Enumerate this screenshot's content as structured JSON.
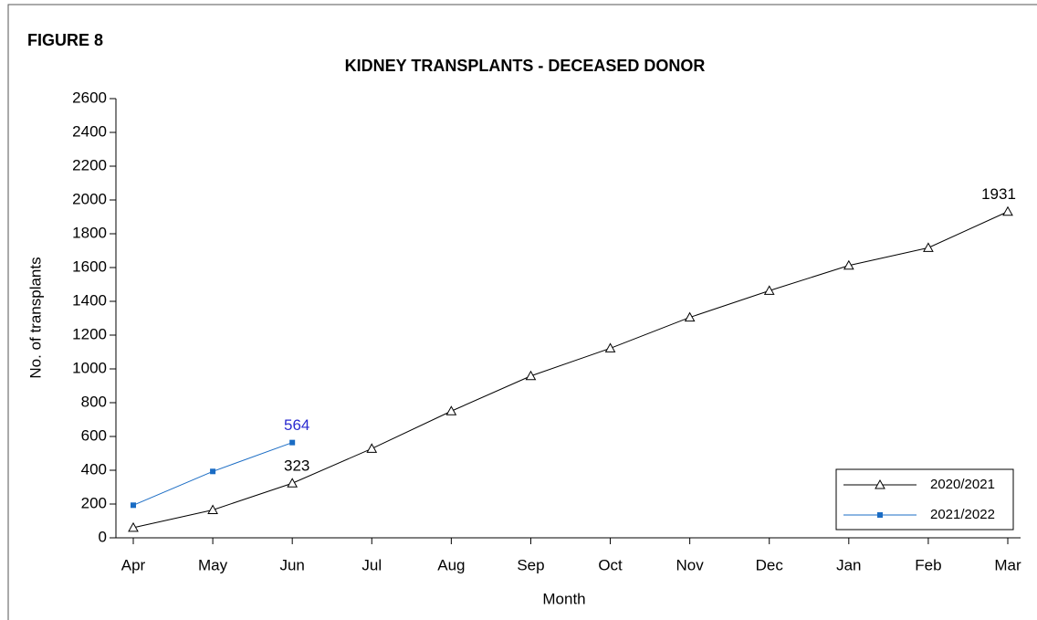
{
  "page_label": "FIGURE 8",
  "chart_data": {
    "type": "line",
    "title": "KIDNEY TRANSPLANTS - DECEASED DONOR",
    "x_label": "Month",
    "y_label": "No. of transplants",
    "categories": [
      "Apr",
      "May",
      "Jun",
      "Jul",
      "Aug",
      "Sep",
      "Oct",
      "Nov",
      "Dec",
      "Jan",
      "Feb",
      "Mar"
    ],
    "ylim": [
      0,
      2600
    ],
    "yticks": [
      0,
      200,
      400,
      600,
      800,
      1000,
      1200,
      1400,
      1600,
      1800,
      2000,
      2200,
      2400,
      2600
    ],
    "legend": "lower right",
    "series": [
      {
        "name": "2020/2021",
        "color": "#000000",
        "marker": "triangle",
        "values": [
          60,
          165,
          323,
          528,
          750,
          958,
          1122,
          1305,
          1463,
          1612,
          1717,
          1931
        ],
        "value_labels": [
          null,
          null,
          "323",
          null,
          null,
          null,
          null,
          null,
          null,
          null,
          null,
          "1931"
        ]
      },
      {
        "name": "2021/2022",
        "color": "#1a6cc4",
        "marker": "square",
        "values": [
          193,
          393,
          564,
          null,
          null,
          null,
          null,
          null,
          null,
          null,
          null,
          null
        ],
        "value_labels": [
          null,
          null,
          "564",
          null,
          null,
          null,
          null,
          null,
          null,
          null,
          null,
          null
        ]
      }
    ]
  }
}
